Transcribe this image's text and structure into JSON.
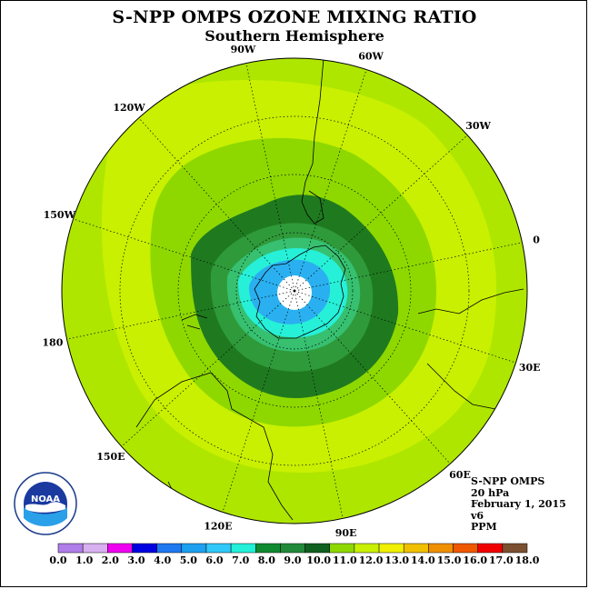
{
  "title": "S-NPP OMPS OZONE MIXING RATIO",
  "subtitle": "Southern Hemisphere",
  "map": {
    "projection": "polar-stereographic-south",
    "colors": {
      "outer": "#aee600",
      "band_12": "#c8f000",
      "band_11": "#8ed800",
      "band_10": "#1f7a1f",
      "band_9": "#2f9a3a",
      "band_8": "#36c070",
      "band_7": "#26f0d8",
      "band_6": "#2ab0f0",
      "core": "#ffffff"
    },
    "lon_labels": [
      {
        "text": "90W",
        "angle": -90
      },
      {
        "text": "60W",
        "angle": -60
      },
      {
        "text": "30W",
        "angle": -30
      },
      {
        "text": "0",
        "angle": 0
      },
      {
        "text": "30E",
        "angle": 30
      },
      {
        "text": "60E",
        "angle": 60
      },
      {
        "text": "90E",
        "angle": 90
      },
      {
        "text": "120E",
        "angle": 120
      },
      {
        "text": "150E",
        "angle": 150
      },
      {
        "text": "180",
        "angle": 180
      },
      {
        "text": "150W",
        "angle": -150
      },
      {
        "text": "120W",
        "angle": -120
      }
    ]
  },
  "info": {
    "instrument": "S-NPP OMPS",
    "level": "20 hPa",
    "date": "February 1, 2015",
    "version": "v6",
    "units": "PPM"
  },
  "logo": {
    "text": "NOAA"
  },
  "legend": {
    "ticks": [
      "0.0",
      "1.0",
      "2.0",
      "3.0",
      "4.0",
      "5.0",
      "6.0",
      "7.0",
      "8.0",
      "9.0",
      "10.0",
      "11.0",
      "12.0",
      "13.0",
      "14.0",
      "15.0",
      "16.0",
      "17.0",
      "18.0"
    ],
    "colors": [
      "#b07ee8",
      "#d8b0f0",
      "#f000f0",
      "#0000e0",
      "#1e78f0",
      "#1ea0f0",
      "#30c8f8",
      "#22f0d8",
      "#108a30",
      "#228a3a",
      "#106020",
      "#8ed800",
      "#c8f000",
      "#f0f000",
      "#f0c000",
      "#f09000",
      "#f05800",
      "#f00000",
      "#7a5030"
    ]
  }
}
